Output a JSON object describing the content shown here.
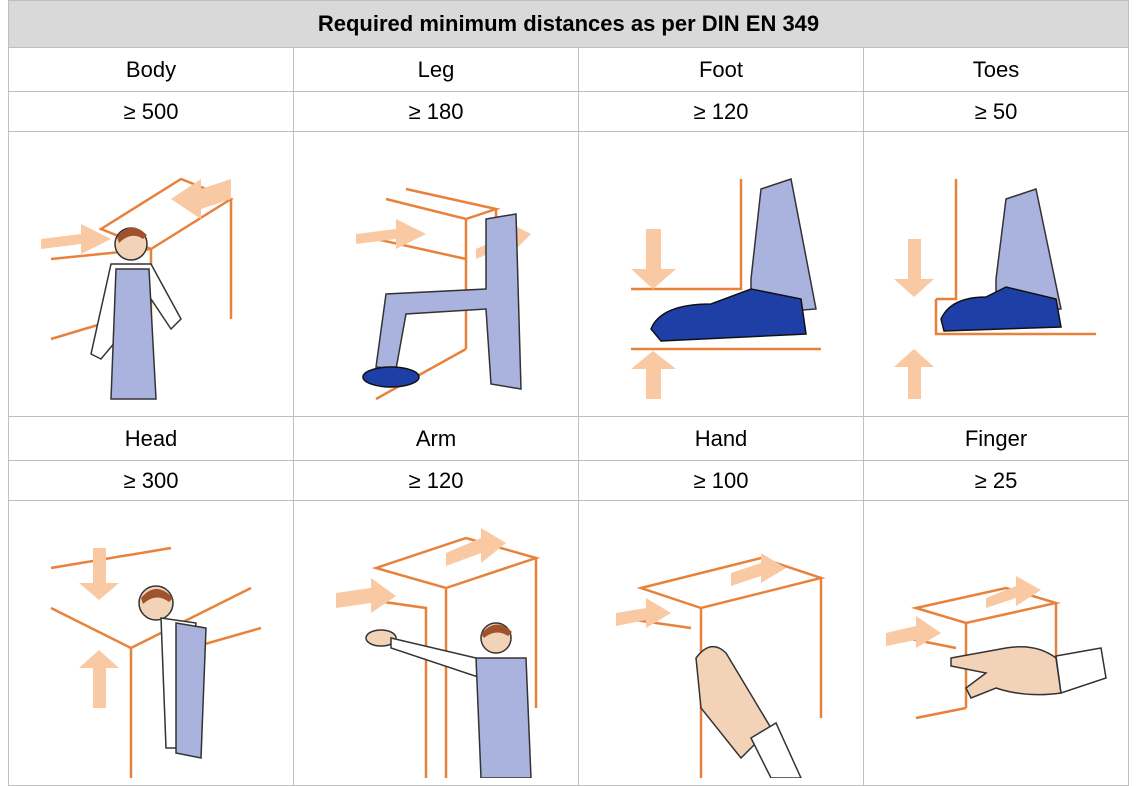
{
  "table": {
    "title": "Required minimum distances as per DIN EN 349",
    "groups": [
      {
        "labels": [
          "Body",
          "Leg",
          "Foot",
          "Toes"
        ],
        "values": [
          "≥ 500",
          "≥ 180",
          "≥ 120",
          "≥ 50"
        ]
      },
      {
        "labels": [
          "Head",
          "Arm",
          "Hand",
          "Finger"
        ],
        "values": [
          "≥ 300",
          "≥ 120",
          "≥ 100",
          "≥ 25"
        ]
      }
    ]
  }
}
